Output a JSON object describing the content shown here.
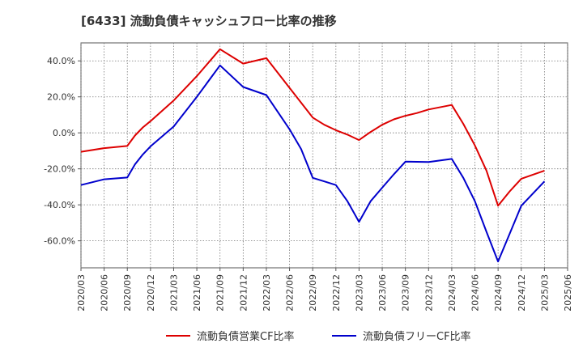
{
  "chart_data": {
    "type": "line",
    "title": "[6433]  流動負債キャッシュフロー比率の推移",
    "xlabel": "",
    "ylabel": "",
    "ylim": [
      -75,
      50
    ],
    "y_ticks": [
      40,
      20,
      0,
      -20,
      -40,
      -60
    ],
    "y_tick_labels": [
      "40.0%",
      "20.0%",
      "0.0%",
      "-20.0%",
      "-40.0%",
      "-60.0%"
    ],
    "x_tick_labels": [
      "2020/03",
      "2020/06",
      "2020/09",
      "2020/12",
      "2021/03",
      "2021/06",
      "2021/09",
      "2021/12",
      "2022/03",
      "2022/06",
      "2022/09",
      "2022/12",
      "2023/03",
      "2023/06",
      "2023/09",
      "2023/12",
      "2024/03",
      "2024/06",
      "2024/09",
      "2024/12",
      "2025/03",
      "2025/06"
    ],
    "grid": true,
    "legend_position": "bottom",
    "series": [
      {
        "name": "流動負債営業CF比率",
        "color": "#dd0000",
        "points": [
          [
            0,
            -10.5
          ],
          [
            1,
            -8.5
          ],
          [
            2,
            -7.3
          ],
          [
            2.33,
            -1.5
          ],
          [
            2.67,
            3.0
          ],
          [
            3,
            6.5
          ],
          [
            4,
            18.0
          ],
          [
            5,
            31.5
          ],
          [
            6,
            46.5
          ],
          [
            7,
            38.5
          ],
          [
            8,
            41.5
          ],
          [
            9,
            25.0
          ],
          [
            10,
            8.5
          ],
          [
            10.5,
            4.5
          ],
          [
            11,
            1.5
          ],
          [
            11.5,
            -1.0
          ],
          [
            12,
            -4.0
          ],
          [
            12.5,
            0.5
          ],
          [
            13,
            4.5
          ],
          [
            13.5,
            7.5
          ],
          [
            14,
            9.5
          ],
          [
            14.5,
            11.0
          ],
          [
            15,
            13.0
          ],
          [
            16,
            15.5
          ],
          [
            16.5,
            5.0
          ],
          [
            17,
            -7.0
          ],
          [
            17.5,
            -21.0
          ],
          [
            18,
            -40.5
          ],
          [
            18.5,
            -32.5
          ],
          [
            19,
            -25.5
          ],
          [
            20,
            -21.0
          ]
        ]
      },
      {
        "name": "流動負債フリーCF比率",
        "color": "#0000cc",
        "points": [
          [
            0,
            -29.0
          ],
          [
            1,
            -25.8
          ],
          [
            2,
            -24.8
          ],
          [
            2.33,
            -17.5
          ],
          [
            2.67,
            -12.0
          ],
          [
            3,
            -7.5
          ],
          [
            4,
            3.5
          ],
          [
            5,
            20.0
          ],
          [
            6,
            37.5
          ],
          [
            7,
            25.5
          ],
          [
            8,
            21.0
          ],
          [
            9,
            2.0
          ],
          [
            9.5,
            -9.0
          ],
          [
            10,
            -25.0
          ],
          [
            10.5,
            -27.0
          ],
          [
            11,
            -29.0
          ],
          [
            11.5,
            -38.0
          ],
          [
            12,
            -49.5
          ],
          [
            12.5,
            -38.0
          ],
          [
            13,
            -30.5
          ],
          [
            13.5,
            -23.0
          ],
          [
            14,
            -16.0
          ],
          [
            15,
            -16.2
          ],
          [
            16,
            -14.5
          ],
          [
            16.5,
            -25.0
          ],
          [
            17,
            -38.0
          ],
          [
            17.5,
            -55.0
          ],
          [
            18,
            -71.5
          ],
          [
            18.5,
            -56.0
          ],
          [
            19,
            -40.5
          ],
          [
            20,
            -27.0
          ]
        ]
      }
    ]
  }
}
